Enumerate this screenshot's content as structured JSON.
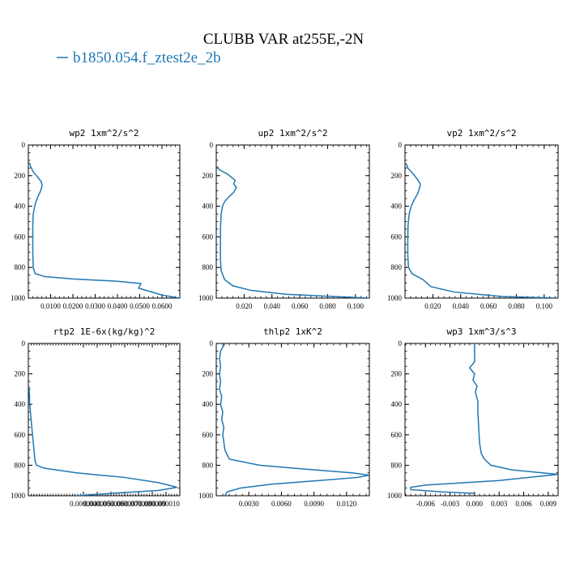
{
  "figure": {
    "title": "CLUBB VAR at255E,-2N",
    "legend_label": "b1850.054.f_ztest2e_2b",
    "series_color": "#1f77b4"
  },
  "chart_data": [
    {
      "type": "line",
      "title": "wp2   1xm^2/s^2",
      "xlim": [
        0.0,
        0.068
      ],
      "ylim": [
        1000,
        0
      ],
      "xticks": [
        0.01,
        0.02,
        0.03,
        0.04,
        0.05,
        0.06
      ],
      "xtick_labels": [
        "0.0100",
        "0.0200",
        "0.0300",
        "0.0400",
        "0.0500",
        "0.0600"
      ],
      "yticks": [
        0,
        200,
        400,
        600,
        800,
        1000
      ],
      "ytick_labels": [
        "0",
        "200",
        "400",
        "600",
        "800",
        "1000"
      ],
      "series": [
        {
          "x": [
            0.0005,
            0.001,
            0.0022,
            0.0042,
            0.0058,
            0.0062,
            0.0055,
            0.0042,
            0.003,
            0.0022,
            0.002,
            0.002,
            0.002,
            0.0022,
            0.003,
            0.0075,
            0.02,
            0.04,
            0.0505,
            0.0495,
            0.06,
            0.068
          ],
          "y": [
            115,
            140,
            175,
            210,
            240,
            265,
            300,
            340,
            390,
            450,
            520,
            600,
            700,
            800,
            840,
            860,
            875,
            890,
            905,
            935,
            980,
            1000
          ]
        }
      ]
    },
    {
      "type": "line",
      "title": "up2   1xm^2/s^2",
      "xlim": [
        0.0,
        0.11
      ],
      "ylim": [
        1000,
        0
      ],
      "xticks": [
        0.02,
        0.04,
        0.06,
        0.08,
        0.1
      ],
      "xtick_labels": [
        "0.020",
        "0.040",
        "0.060",
        "0.080",
        "0.100"
      ],
      "yticks": [
        0,
        200,
        400,
        600,
        800,
        1000
      ],
      "ytick_labels": [
        "0",
        "200",
        "400",
        "600",
        "800",
        "1000"
      ],
      "series": [
        {
          "x": [
            0.0008,
            0.002,
            0.008,
            0.0135,
            0.0125,
            0.0145,
            0.0125,
            0.009,
            0.006,
            0.0045,
            0.0035,
            0.003,
            0.003,
            0.003,
            0.0035,
            0.006,
            0.012,
            0.025,
            0.05,
            0.085,
            0.11
          ],
          "y": [
            140,
            160,
            190,
            230,
            255,
            275,
            310,
            340,
            370,
            400,
            450,
            550,
            650,
            750,
            820,
            880,
            920,
            950,
            975,
            990,
            1000
          ]
        }
      ]
    },
    {
      "type": "line",
      "title": "vp2   1xm^2/s^2",
      "xlim": [
        0.0,
        0.11
      ],
      "ylim": [
        1000,
        0
      ],
      "xticks": [
        0.02,
        0.04,
        0.06,
        0.08,
        0.1
      ],
      "xtick_labels": [
        "0.020",
        "0.040",
        "0.060",
        "0.080",
        "0.100"
      ],
      "yticks": [
        0,
        200,
        400,
        600,
        800,
        1000
      ],
      "ytick_labels": [
        "0",
        "200",
        "400",
        "600",
        "800",
        "1000"
      ],
      "series": [
        {
          "x": [
            0.0008,
            0.002,
            0.006,
            0.009,
            0.011,
            0.0105,
            0.009,
            0.0065,
            0.0045,
            0.003,
            0.0022,
            0.002,
            0.002,
            0.0025,
            0.005,
            0.013,
            0.0185,
            0.035,
            0.07,
            0.11
          ],
          "y": [
            120,
            150,
            190,
            225,
            255,
            280,
            320,
            360,
            400,
            450,
            520,
            620,
            720,
            800,
            840,
            880,
            925,
            960,
            990,
            1000
          ]
        }
      ]
    },
    {
      "type": "line",
      "title": "rtp2   1E-6x(kg/kg)^2",
      "xlim": [
        0.0,
        1.1e-05
      ],
      "ylim": [
        1000,
        0
      ],
      "xticks": [
        4e-06,
        5e-06,
        6e-06,
        7e-06,
        8e-06,
        9e-06,
        1e-05
      ],
      "xtick_labels": [
        "0.000004",
        "0.000005",
        "0.000006",
        "0.000007",
        "0.000008",
        "0.000009",
        "0.000010"
      ],
      "yticks": [
        0,
        200,
        400,
        600,
        800,
        1000
      ],
      "ytick_labels": [
        "0",
        "200",
        "400",
        "600",
        "800",
        "1000"
      ],
      "series": [
        {
          "x": [
            5e-08,
            1e-07,
            2e-07,
            3e-07,
            4e-07,
            4.5e-07,
            5e-07,
            6e-07,
            1.2e-06,
            3.5e-06,
            7e-06,
            9.5e-06,
            1.08e-05,
            9.5e-06,
            6e-06,
            3.5e-06
          ],
          "y": [
            280,
            400,
            500,
            600,
            690,
            740,
            775,
            800,
            820,
            850,
            880,
            915,
            945,
            965,
            985,
            1000
          ]
        }
      ]
    },
    {
      "type": "line",
      "title": "thlp2   1xK^2",
      "xlim": [
        0.0,
        0.0141
      ],
      "ylim": [
        1000,
        0
      ],
      "xticks": [
        0.003,
        0.006,
        0.009,
        0.012
      ],
      "xtick_labels": [
        "0.0030",
        "0.0060",
        "0.0090",
        "0.0120"
      ],
      "yticks": [
        0,
        200,
        400,
        600,
        800,
        1000
      ],
      "ytick_labels": [
        "0",
        "200",
        "400",
        "600",
        "800",
        "1000"
      ],
      "series": [
        {
          "x": [
            0.0008,
            0.0004,
            0.0003,
            0.0004,
            0.0003,
            0.0004,
            0.0003,
            0.0005,
            0.0004,
            0.0006,
            0.0005,
            0.0007,
            0.0006,
            0.0008,
            0.0012,
            0.004,
            0.009,
            0.0125,
            0.0141,
            0.013,
            0.0095,
            0.005,
            0.0022,
            0.001,
            0.0008
          ],
          "y": [
            0,
            50,
            100,
            150,
            200,
            250,
            300,
            350,
            400,
            450,
            500,
            550,
            600,
            700,
            760,
            800,
            830,
            850,
            865,
            880,
            900,
            925,
            950,
            975,
            1000
          ]
        }
      ]
    },
    {
      "type": "line",
      "title": "wp3   1xm^3/s^3",
      "xlim": [
        -0.0085,
        0.0102
      ],
      "ylim": [
        1000,
        0
      ],
      "xticks": [
        -0.006,
        -0.003,
        0.0,
        0.003,
        0.006,
        0.009
      ],
      "xtick_labels": [
        "-0.006",
        "-0.003",
        "0.000",
        "0.003",
        "0.006",
        "0.009"
      ],
      "yticks": [
        0,
        200,
        400,
        600,
        800,
        1000
      ],
      "ytick_labels": [
        "0",
        "200",
        "400",
        "600",
        "800",
        "1000"
      ],
      "series": [
        {
          "x": [
            0.0,
            0.0,
            -0.0006,
            0.0,
            -0.0002,
            0.0003,
            0.0001,
            0.0004,
            0.0004,
            0.0005,
            0.0006,
            0.0008,
            0.0012,
            0.002,
            0.0045,
            0.0102,
            0.003,
            -0.006,
            -0.0078,
            -0.0078,
            -0.004,
            0.0
          ],
          "y": [
            0,
            120,
            160,
            200,
            240,
            280,
            320,
            380,
            450,
            550,
            650,
            720,
            760,
            800,
            830,
            860,
            900,
            930,
            945,
            960,
            975,
            985
          ]
        }
      ]
    }
  ]
}
